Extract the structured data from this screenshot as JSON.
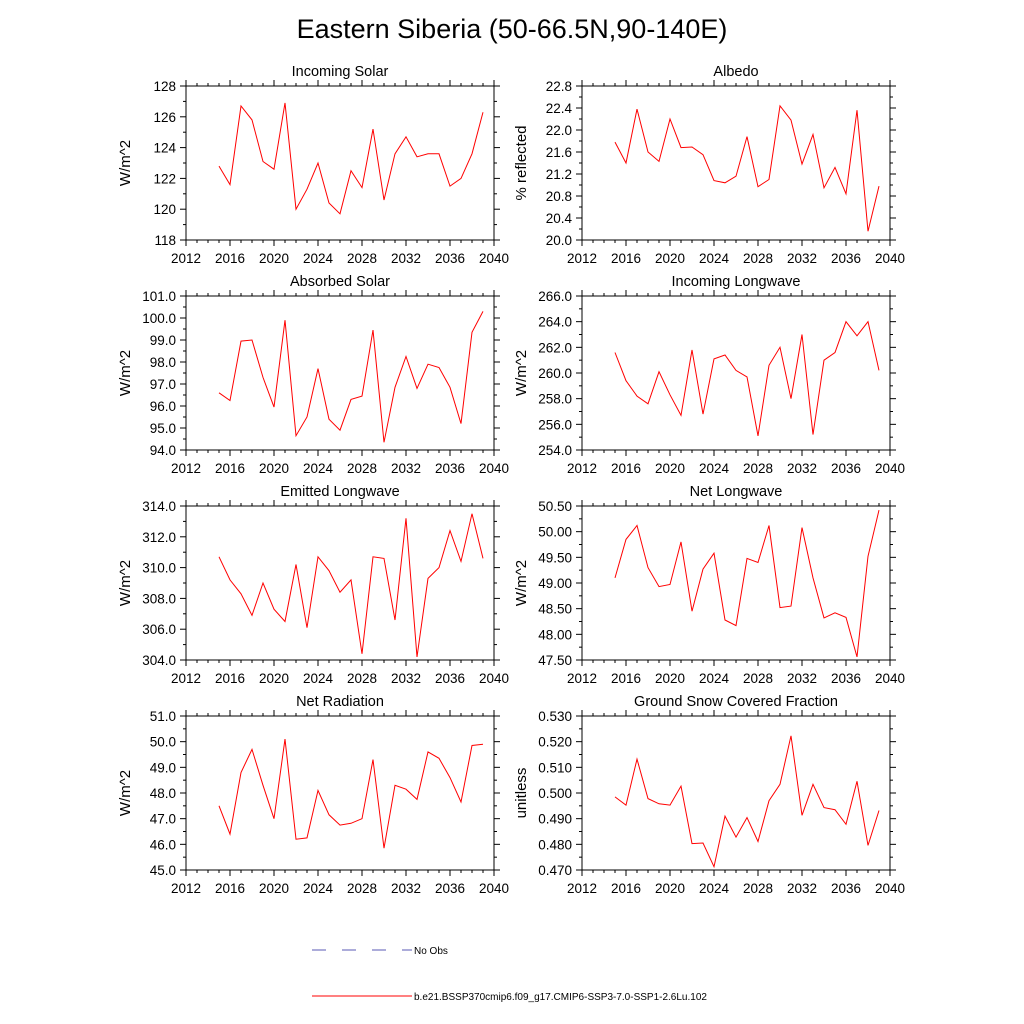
{
  "figure": {
    "title": "Eastern Siberia (50-66.5N,90-140E)",
    "line_color": "#ff0000",
    "obs_color": "#5a5ab4"
  },
  "legend": {
    "obs_label": "No Obs",
    "model_label": "b.e21.BSSP370cmip6.f09_g17.CMIP6-SSP3-7.0-SSP1-2.6Lu.102"
  },
  "chart_data": [
    {
      "type": "line",
      "title": "Incoming Solar",
      "ylabel": "W/m^2",
      "xlim": [
        2012,
        2040
      ],
      "ylim": [
        118,
        128
      ],
      "xticks": [
        "2012",
        "2016",
        "2020",
        "2024",
        "2028",
        "2032",
        "2036",
        "2040"
      ],
      "yticks": [
        "118",
        "120",
        "122",
        "124",
        "126",
        "128"
      ],
      "x": [
        2015,
        2016,
        2017,
        2018,
        2019,
        2020,
        2021,
        2022,
        2023,
        2024,
        2025,
        2026,
        2027,
        2028,
        2029,
        2030,
        2031,
        2032,
        2033,
        2034,
        2035,
        2036,
        2037,
        2038,
        2039
      ],
      "values": [
        122.8,
        121.6,
        126.7,
        125.8,
        123.1,
        122.6,
        126.9,
        120.0,
        121.3,
        123.0,
        120.4,
        119.7,
        122.5,
        121.4,
        125.2,
        120.6,
        123.6,
        124.7,
        123.4,
        123.6,
        123.6,
        121.5,
        122.0,
        123.6,
        126.3
      ]
    },
    {
      "type": "line",
      "title": "Albedo",
      "ylabel": "% reflected",
      "xlim": [
        2012,
        2040
      ],
      "ylim": [
        20.0,
        22.8
      ],
      "xticks": [
        "2012",
        "2016",
        "2020",
        "2024",
        "2028",
        "2032",
        "2036",
        "2040"
      ],
      "yticks": [
        "20.0",
        "20.4",
        "20.8",
        "21.2",
        "21.6",
        "22.0",
        "22.4",
        "22.8"
      ],
      "x": [
        2015,
        2016,
        2017,
        2018,
        2019,
        2020,
        2021,
        2022,
        2023,
        2024,
        2025,
        2026,
        2027,
        2028,
        2029,
        2030,
        2031,
        2032,
        2033,
        2034,
        2035,
        2036,
        2037,
        2038,
        2039
      ],
      "values": [
        21.78,
        21.4,
        22.38,
        21.6,
        21.43,
        22.2,
        21.68,
        21.69,
        21.55,
        21.08,
        21.04,
        21.16,
        21.88,
        20.97,
        21.1,
        22.44,
        22.18,
        21.38,
        21.92,
        20.95,
        21.32,
        20.84,
        22.36,
        20.16,
        20.98
      ]
    },
    {
      "type": "line",
      "title": "Absorbed Solar",
      "ylabel": "W/m^2",
      "xlim": [
        2012,
        2040
      ],
      "ylim": [
        94.0,
        101.0
      ],
      "xticks": [
        "2012",
        "2016",
        "2020",
        "2024",
        "2028",
        "2032",
        "2036",
        "2040"
      ],
      "yticks": [
        "94.0",
        "95.0",
        "96.0",
        "97.0",
        "98.0",
        "99.0",
        "100.0",
        "101.0"
      ],
      "x": [
        2015,
        2016,
        2017,
        2018,
        2019,
        2020,
        2021,
        2022,
        2023,
        2024,
        2025,
        2026,
        2027,
        2028,
        2029,
        2030,
        2031,
        2032,
        2033,
        2034,
        2035,
        2036,
        2037,
        2038,
        2039
      ],
      "values": [
        96.6,
        96.25,
        98.95,
        99.0,
        97.3,
        95.95,
        99.9,
        94.65,
        95.5,
        97.7,
        95.4,
        94.9,
        96.3,
        96.45,
        99.45,
        94.35,
        96.85,
        98.25,
        96.8,
        97.9,
        97.75,
        96.85,
        95.2,
        99.35,
        100.3
      ]
    },
    {
      "type": "line",
      "title": "Incoming Longwave",
      "ylabel": "W/m^2",
      "xlim": [
        2012,
        2040
      ],
      "ylim": [
        254.0,
        266.0
      ],
      "xticks": [
        "2012",
        "2016",
        "2020",
        "2024",
        "2028",
        "2032",
        "2036",
        "2040"
      ],
      "yticks": [
        "254.0",
        "256.0",
        "258.0",
        "260.0",
        "262.0",
        "264.0",
        "266.0"
      ],
      "x": [
        2015,
        2016,
        2017,
        2018,
        2019,
        2020,
        2021,
        2022,
        2023,
        2024,
        2025,
        2026,
        2027,
        2028,
        2029,
        2030,
        2031,
        2032,
        2033,
        2034,
        2035,
        2036,
        2037,
        2038,
        2039
      ],
      "values": [
        261.6,
        259.4,
        258.2,
        257.6,
        260.1,
        258.3,
        256.7,
        261.8,
        256.8,
        261.1,
        261.4,
        260.2,
        259.7,
        255.1,
        260.6,
        262.0,
        258.0,
        263.0,
        255.2,
        261.0,
        261.6,
        264.0,
        262.9,
        264.0,
        260.2
      ]
    },
    {
      "type": "line",
      "title": "Emitted Longwave",
      "ylabel": "W/m^2",
      "xlim": [
        2012,
        2040
      ],
      "ylim": [
        304.0,
        314.0
      ],
      "xticks": [
        "2012",
        "2016",
        "2020",
        "2024",
        "2028",
        "2032",
        "2036",
        "2040"
      ],
      "yticks": [
        "304.0",
        "306.0",
        "308.0",
        "310.0",
        "312.0",
        "314.0"
      ],
      "x": [
        2015,
        2016,
        2017,
        2018,
        2019,
        2020,
        2021,
        2022,
        2023,
        2024,
        2025,
        2026,
        2027,
        2028,
        2029,
        2030,
        2031,
        2032,
        2033,
        2034,
        2035,
        2036,
        2037,
        2038,
        2039
      ],
      "values": [
        310.7,
        309.2,
        308.3,
        306.9,
        309.0,
        307.3,
        306.5,
        310.2,
        306.1,
        310.7,
        309.8,
        308.4,
        309.2,
        304.4,
        310.7,
        310.6,
        306.6,
        313.2,
        304.2,
        309.3,
        310.0,
        312.4,
        310.4,
        313.5,
        310.6
      ]
    },
    {
      "type": "line",
      "title": "Net Longwave",
      "ylabel": "W/m^2",
      "xlim": [
        2012,
        2040
      ],
      "ylim": [
        47.5,
        50.5
      ],
      "xticks": [
        "2012",
        "2016",
        "2020",
        "2024",
        "2028",
        "2032",
        "2036",
        "2040"
      ],
      "yticks": [
        "47.50",
        "48.00",
        "48.50",
        "49.00",
        "49.50",
        "50.00",
        "50.50"
      ],
      "x": [
        2015,
        2016,
        2017,
        2018,
        2019,
        2020,
        2021,
        2022,
        2023,
        2024,
        2025,
        2026,
        2027,
        2028,
        2029,
        2030,
        2031,
        2032,
        2033,
        2034,
        2035,
        2036,
        2037,
        2038,
        2039
      ],
      "values": [
        49.1,
        49.85,
        50.12,
        49.3,
        48.93,
        48.97,
        49.8,
        48.45,
        49.27,
        49.58,
        48.28,
        48.17,
        49.48,
        49.4,
        50.12,
        48.52,
        48.55,
        50.08,
        49.1,
        48.32,
        48.42,
        48.33,
        47.56,
        49.52,
        50.42
      ]
    },
    {
      "type": "line",
      "title": "Net Radiation",
      "ylabel": "W/m^2",
      "xlim": [
        2012,
        2040
      ],
      "ylim": [
        45.0,
        51.0
      ],
      "xticks": [
        "2012",
        "2016",
        "2020",
        "2024",
        "2028",
        "2032",
        "2036",
        "2040"
      ],
      "yticks": [
        "45.0",
        "46.0",
        "47.0",
        "48.0",
        "49.0",
        "50.0",
        "51.0"
      ],
      "x": [
        2015,
        2016,
        2017,
        2018,
        2019,
        2020,
        2021,
        2022,
        2023,
        2024,
        2025,
        2026,
        2027,
        2028,
        2029,
        2030,
        2031,
        2032,
        2033,
        2034,
        2035,
        2036,
        2037,
        2038,
        2039
      ],
      "values": [
        47.5,
        46.4,
        48.8,
        49.7,
        48.3,
        47.0,
        50.1,
        46.2,
        46.25,
        48.1,
        47.15,
        46.75,
        46.82,
        47.0,
        49.3,
        45.85,
        48.3,
        48.15,
        47.75,
        49.6,
        49.35,
        48.6,
        47.65,
        49.85,
        49.9
      ]
    },
    {
      "type": "line",
      "title": "Ground Snow Covered Fraction",
      "ylabel": "unitless",
      "xlim": [
        2012,
        2040
      ],
      "ylim": [
        0.47,
        0.53
      ],
      "xticks": [
        "2012",
        "2016",
        "2020",
        "2024",
        "2028",
        "2032",
        "2036",
        "2040"
      ],
      "yticks": [
        "0.470",
        "0.480",
        "0.490",
        "0.500",
        "0.510",
        "0.520",
        "0.530"
      ],
      "x": [
        2015,
        2016,
        2017,
        2018,
        2019,
        2020,
        2021,
        2022,
        2023,
        2024,
        2025,
        2026,
        2027,
        2028,
        2029,
        2030,
        2031,
        2032,
        2033,
        2034,
        2035,
        2036,
        2037,
        2038,
        2039
      ],
      "values": [
        0.4985,
        0.4953,
        0.5132,
        0.4978,
        0.4958,
        0.4953,
        0.5027,
        0.4803,
        0.4805,
        0.4713,
        0.491,
        0.4828,
        0.4904,
        0.4811,
        0.497,
        0.5034,
        0.5223,
        0.4913,
        0.5034,
        0.4943,
        0.4935,
        0.4878,
        0.5046,
        0.4796,
        0.4932
      ]
    }
  ]
}
